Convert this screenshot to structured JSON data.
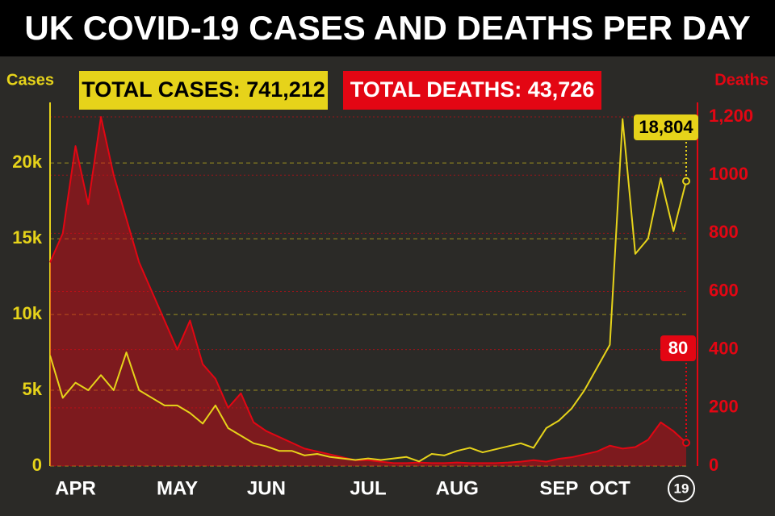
{
  "chart_data": {
    "type": "line",
    "title": "UK COVID-19 CASES AND DEATHS PER DAY",
    "annotations": [
      "TOTAL CASES: 741,212",
      "TOTAL DEATHS: 43,726"
    ],
    "categories": [
      null,
      null,
      "APR",
      null,
      null,
      null,
      null,
      null,
      null,
      null,
      "MAY",
      null,
      null,
      null,
      null,
      null,
      null,
      "JUN",
      null,
      null,
      null,
      null,
      null,
      null,
      null,
      "JUL",
      null,
      null,
      null,
      null,
      null,
      null,
      "AUG",
      null,
      null,
      null,
      null,
      null,
      null,
      null,
      "SEP",
      null,
      null,
      null,
      "OCT",
      null,
      null,
      null,
      null,
      null,
      "19"
    ],
    "series": [
      {
        "name": "Cases",
        "color": "#e6d31a",
        "axis": "y",
        "values": [
          7300,
          4500,
          5500,
          5000,
          6000,
          5000,
          7500,
          5000,
          4500,
          4000,
          4000,
          3500,
          2800,
          4000,
          2500,
          2000,
          1500,
          1300,
          1000,
          1000,
          700,
          800,
          600,
          500,
          400,
          500,
          400,
          500,
          600,
          300,
          800,
          700,
          1000,
          1200,
          900,
          1100,
          1300,
          1500,
          1200,
          2500,
          3000,
          3800,
          5000,
          6500,
          8000,
          22900,
          14000,
          15000,
          19000,
          15500,
          18804
        ],
        "value_labels": [
          null,
          null,
          null,
          null,
          null,
          null,
          null,
          null,
          null,
          null,
          null,
          null,
          null,
          null,
          null,
          null,
          null,
          null,
          null,
          null,
          null,
          null,
          null,
          null,
          null,
          null,
          null,
          null,
          null,
          null,
          null,
          null,
          null,
          null,
          null,
          null,
          null,
          null,
          null,
          null,
          null,
          null,
          null,
          null,
          null,
          null,
          null,
          null,
          null,
          null,
          "18,804"
        ]
      },
      {
        "name": "Deaths",
        "color": "#e30613",
        "axis": "y2",
        "values": [
          700,
          800,
          1100,
          900,
          1200,
          1000,
          850,
          700,
          600,
          500,
          400,
          500,
          350,
          300,
          200,
          250,
          150,
          120,
          100,
          80,
          60,
          50,
          40,
          30,
          20,
          20,
          15,
          10,
          10,
          12,
          10,
          10,
          12,
          10,
          10,
          10,
          12,
          15,
          20,
          15,
          25,
          30,
          40,
          50,
          70,
          60,
          65,
          90,
          150,
          120,
          80
        ]
      }
    ],
    "ylim": [
      0,
      24000
    ],
    "yticks": [
      0,
      {
        "value": 5000,
        "label": "5k"
      },
      {
        "value": 10000,
        "label": "10k"
      },
      {
        "value": 15000,
        "label": "15k"
      },
      {
        "value": 20000,
        "label": "20k"
      }
    ],
    "y2lim": [
      0,
      1250
    ],
    "y2ticks": [
      0,
      200,
      400,
      600,
      800,
      1000,
      {
        "value": 1200,
        "label": "1,200"
      }
    ],
    "grid": true
  }
}
